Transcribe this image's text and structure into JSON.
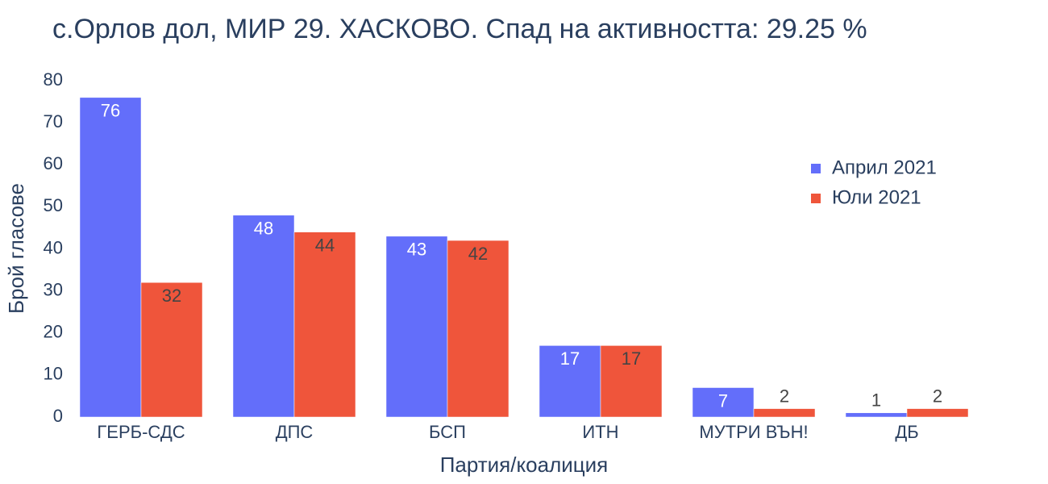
{
  "chart_data": {
    "type": "bar",
    "title": "с.Орлов дол, МИР 29. ХАСКОВО. Спад на активността: 29.25 %",
    "x_label": "Партия/коалиция",
    "y_label": "Брой гласове",
    "categories": [
      "ГЕРБ-СДС",
      "ДПС",
      "БСП",
      "ИТН",
      "МУТРИ ВЪН!",
      "ДБ"
    ],
    "series": [
      {
        "name": "Април 2021",
        "color": "#636efa",
        "values": [
          76,
          48,
          43,
          17,
          7,
          1
        ]
      },
      {
        "name": "Юли 2021",
        "color": "#ef553b",
        "values": [
          32,
          44,
          42,
          17,
          2,
          2
        ]
      }
    ],
    "ylim": [
      0,
      80
    ],
    "yticks": [
      0,
      10,
      20,
      30,
      40,
      50,
      60,
      70,
      80
    ],
    "grid": false,
    "legend": "upper right"
  }
}
